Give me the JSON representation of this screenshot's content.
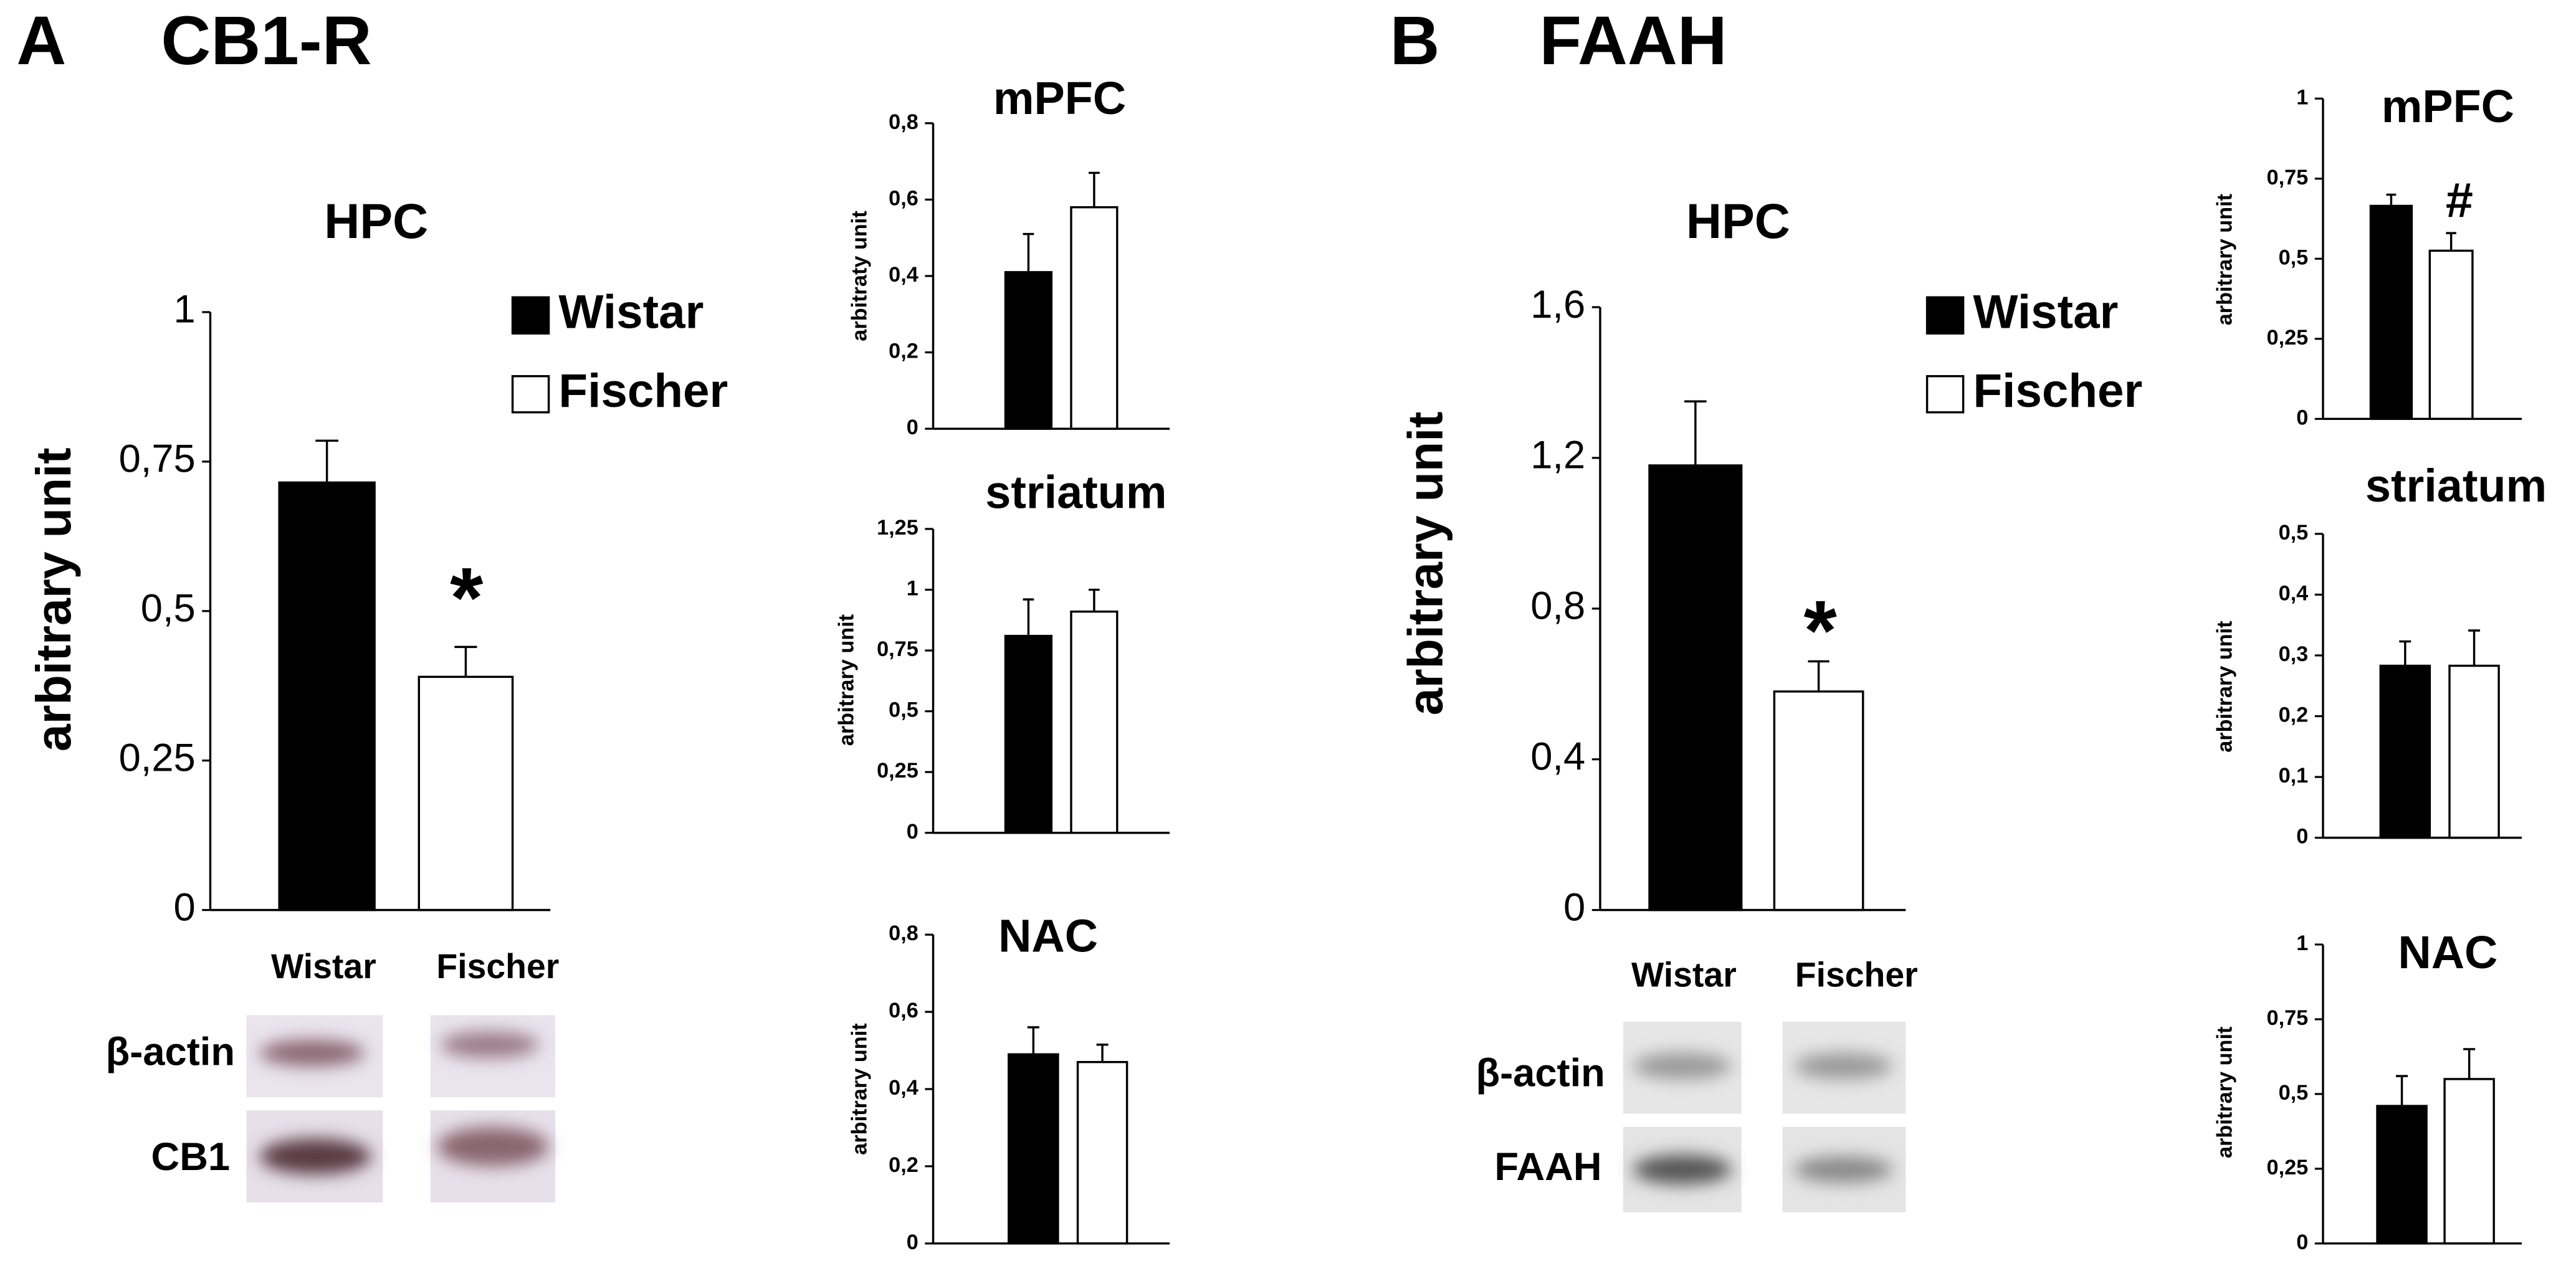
{
  "panels": [
    {
      "letter": "A",
      "title": "CB1-R",
      "blot_rows": [
        "β-actin",
        "CB1"
      ]
    },
    {
      "letter": "B",
      "title": "FAAH",
      "blot_rows": [
        "β-actin",
        "FAAH"
      ]
    }
  ],
  "chart_data": [
    {
      "type": "bar",
      "title": "HPC",
      "y_label": "arbitrary unit",
      "categories": [
        "Wistar",
        "Fischer"
      ],
      "legend": true,
      "values": [
        0.715,
        0.39
      ],
      "errors": [
        0.07,
        0.05
      ],
      "colors": [
        "#000000",
        "#ffffff"
      ],
      "annotation": "*",
      "ylim": [
        0,
        1
      ],
      "yticks": [
        0,
        {
          "value": 0.25,
          "label": "0,25"
        },
        {
          "value": 0.5,
          "label": "0,5"
        },
        {
          "value": 0.75,
          "label": "0,75"
        },
        1
      ]
    },
    {
      "type": "bar",
      "title": "mPFC",
      "y_label": "arbitraty unit",
      "values": [
        0.41,
        0.58
      ],
      "errors": [
        0.1,
        0.09
      ],
      "colors": [
        "#000000",
        "#ffffff"
      ],
      "ylim": [
        0,
        0.8
      ],
      "yticks": [
        0,
        {
          "value": 0.2,
          "label": "0,2"
        },
        {
          "value": 0.4,
          "label": "0,4"
        },
        {
          "value": 0.6,
          "label": "0,6"
        },
        {
          "value": 0.8,
          "label": "0,8"
        }
      ]
    },
    {
      "type": "bar",
      "title": "striatum",
      "y_label": "arbitrary unit",
      "values": [
        0.81,
        0.91
      ],
      "errors": [
        0.15,
        0.09
      ],
      "colors": [
        "#000000",
        "#ffffff"
      ],
      "ylim": [
        0,
        1.25
      ],
      "yticks": [
        0,
        {
          "value": 0.25,
          "label": "0,25"
        },
        {
          "value": 0.5,
          "label": "0,5"
        },
        {
          "value": 0.75,
          "label": "0,75"
        },
        1,
        {
          "value": 1.25,
          "label": "1,25"
        }
      ]
    },
    {
      "type": "bar",
      "title": "NAC",
      "y_label": "arbitrary unit",
      "values": [
        0.49,
        0.47
      ],
      "errors": [
        0.07,
        0.045
      ],
      "colors": [
        "#000000",
        "#ffffff"
      ],
      "ylim": [
        0,
        0.8
      ],
      "yticks": [
        0,
        {
          "value": 0.2,
          "label": "0,2"
        },
        {
          "value": 0.4,
          "label": "0,4"
        },
        {
          "value": 0.6,
          "label": "0,6"
        },
        {
          "value": 0.8,
          "label": "0,8"
        }
      ]
    },
    {
      "type": "bar",
      "title": "HPC",
      "y_label": "arbitrary unit",
      "categories": [
        "Wistar",
        "Fischer"
      ],
      "legend": true,
      "values": [
        1.18,
        0.58
      ],
      "errors": [
        0.17,
        0.08
      ],
      "colors": [
        "#000000",
        "#ffffff"
      ],
      "annotation": "*",
      "ylim": [
        0,
        1.6
      ],
      "yticks": [
        0,
        {
          "value": 0.4,
          "label": "0,4"
        },
        {
          "value": 0.8,
          "label": "0,8"
        },
        {
          "value": 1.2,
          "label": "1,2"
        },
        {
          "value": 1.6,
          "label": "1,6"
        }
      ]
    },
    {
      "type": "bar",
      "title": "mPFC",
      "y_label": "arbitrary unit",
      "values": [
        0.665,
        0.525
      ],
      "errors": [
        0.035,
        0.055
      ],
      "colors": [
        "#000000",
        "#ffffff"
      ],
      "annotation": "#",
      "ylim": [
        0,
        1
      ],
      "yticks": [
        0,
        {
          "value": 0.25,
          "label": "0,25"
        },
        {
          "value": 0.5,
          "label": "0,5"
        },
        {
          "value": 0.75,
          "label": "0,75"
        },
        1
      ]
    },
    {
      "type": "bar",
      "title": "striatum",
      "y_label": "arbitrary unit",
      "values": [
        0.283,
        0.283
      ],
      "errors": [
        0.04,
        0.058
      ],
      "colors": [
        "#000000",
        "#ffffff"
      ],
      "ylim": [
        0,
        0.5
      ],
      "yticks": [
        0,
        {
          "value": 0.1,
          "label": "0,1"
        },
        {
          "value": 0.2,
          "label": "0,2"
        },
        {
          "value": 0.3,
          "label": "0,3"
        },
        {
          "value": 0.4,
          "label": "0,4"
        },
        {
          "value": 0.5,
          "label": "0,5"
        }
      ]
    },
    {
      "type": "bar",
      "title": "NAC",
      "y_label": "arbitrary unit",
      "values": [
        0.46,
        0.55
      ],
      "errors": [
        0.1,
        0.1
      ],
      "colors": [
        "#000000",
        "#ffffff"
      ],
      "ylim": [
        0,
        1
      ],
      "yticks": [
        0,
        {
          "value": 0.25,
          "label": "0,25"
        },
        {
          "value": 0.5,
          "label": "0,5"
        },
        {
          "value": 0.75,
          "label": "0,75"
        },
        1
      ]
    }
  ]
}
